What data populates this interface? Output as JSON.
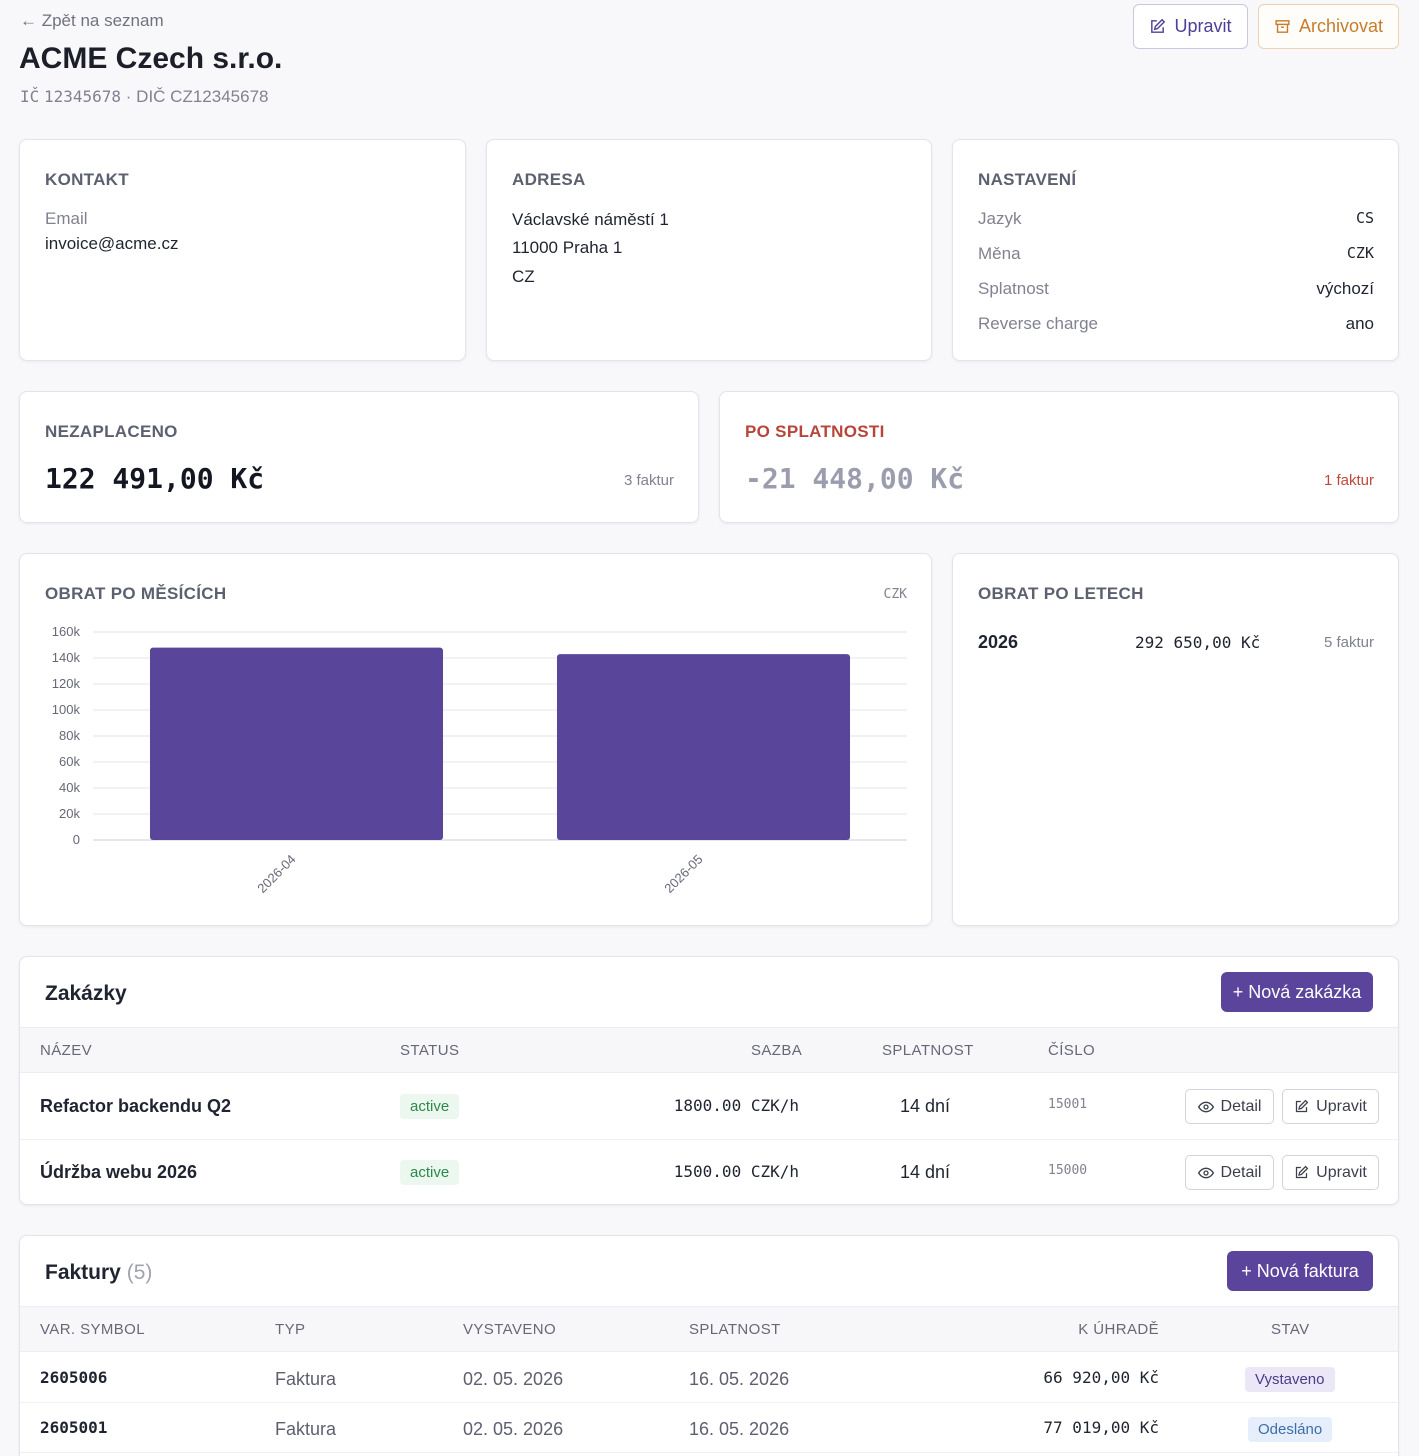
{
  "header": {
    "back_label": "← Zpět na seznam",
    "title": "ACME Czech s.r.o.",
    "ic_label": "IČ",
    "ic_value": "12345678",
    "dic_text": "· DIČ CZ12345678",
    "edit_label": "Upravit",
    "archive_label": "Archivovat"
  },
  "kontakt": {
    "title": "KONTAKT",
    "email_label": "Email",
    "email_value": "invoice@acme.cz"
  },
  "adresa": {
    "title": "ADRESA",
    "line1": "Václavské náměstí 1",
    "line2": "11000 Praha 1",
    "line3": "CZ"
  },
  "nastaveni": {
    "title": "NASTAVENÍ",
    "rows": [
      {
        "label": "Jazyk",
        "value": "CS"
      },
      {
        "label": "Měna",
        "value": "CZK"
      },
      {
        "label": "Splatnost",
        "value": "výchozí"
      },
      {
        "label": "Reverse charge",
        "value": "ano"
      }
    ]
  },
  "unpaid": {
    "title": "NEZAPLACENO",
    "amount": "122 491,00 Kč",
    "count": "3 faktur"
  },
  "overdue": {
    "title": "PO SPLATNOSTI",
    "amount": "-21 448,00 Kč",
    "count": "1 faktur"
  },
  "monthly": {
    "title": "OBRAT PO MĚSÍCÍCH",
    "currency": "CZK"
  },
  "chart_data": {
    "type": "bar",
    "categories": [
      "2026-04",
      "2026-05"
    ],
    "values": [
      148000,
      143000
    ],
    "ylim": [
      0,
      160000
    ],
    "yticks": [
      0,
      20000,
      40000,
      60000,
      80000,
      100000,
      120000,
      140000,
      160000
    ],
    "ytick_labels": [
      "0",
      "20k",
      "40k",
      "60k",
      "80k",
      "100k",
      "120k",
      "140k",
      "160k"
    ],
    "grid": true,
    "bar_color": "#59469b"
  },
  "yearly": {
    "title": "OBRAT PO LETECH",
    "rows": [
      {
        "year": "2026",
        "amount": "292 650,00 Kč",
        "count": "5 faktur"
      }
    ]
  },
  "zakazky": {
    "title": "Zakázky",
    "new_label": "+ Nová zakázka",
    "columns": [
      "NÁZEV",
      "STATUS",
      "SAZBA",
      "SPLATNOST",
      "ČÍSLO"
    ],
    "detail_label": "Detail",
    "edit_label": "Upravit",
    "rows": [
      {
        "name": "Refactor backendu Q2",
        "status": "active",
        "rate": "1800.00 CZK/h",
        "due": "14 dní",
        "number": "15001"
      },
      {
        "name": "Údržba webu 2026",
        "status": "active",
        "rate": "1500.00 CZK/h",
        "due": "14 dní",
        "number": "15000"
      }
    ]
  },
  "faktury": {
    "title": "Faktury",
    "count": "(5)",
    "new_label": "+ Nová faktura",
    "columns": [
      "VAR. SYMBOL",
      "TYP",
      "VYSTAVENO",
      "SPLATNOST",
      "K ÚHRADĚ",
      "STAV"
    ],
    "rows": [
      {
        "vs": "2605006",
        "type": "Faktura",
        "issued": "02. 05. 2026",
        "due": "16. 05. 2026",
        "amount": "66 920,00 Kč",
        "status": "Vystaveno"
      },
      {
        "vs": "2605001",
        "type": "Faktura",
        "issued": "02. 05. 2026",
        "due": "16. 05. 2026",
        "amount": "77 019,00 Kč",
        "status": "Odesláno"
      }
    ]
  },
  "colors": {
    "accent": "#5b449c",
    "overdue": "#c0392b",
    "archive": "#c77b2c"
  }
}
